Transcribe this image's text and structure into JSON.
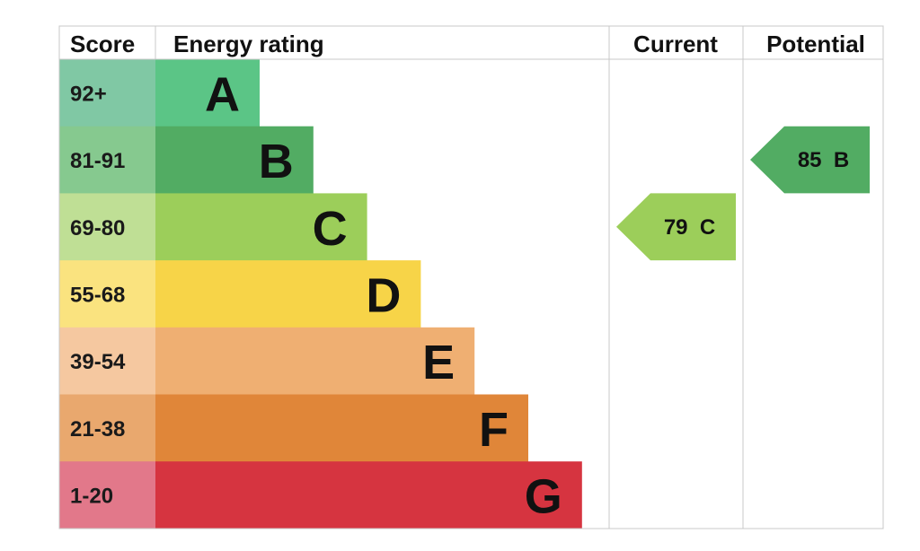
{
  "headers": {
    "score": "Score",
    "energy_rating": "Energy rating",
    "current": "Current",
    "potential": "Potential"
  },
  "chart_data": {
    "type": "bar",
    "bands": [
      {
        "letter": "A",
        "range": "92+",
        "min": 92,
        "max": 100,
        "color": "#5bc586",
        "score_color": "#80c8a4"
      },
      {
        "letter": "B",
        "range": "81-91",
        "min": 81,
        "max": 91,
        "color": "#52ac63",
        "score_color": "#86c98f"
      },
      {
        "letter": "C",
        "range": "69-80",
        "min": 69,
        "max": 80,
        "color": "#9cce5a",
        "score_color": "#bfdf95"
      },
      {
        "letter": "D",
        "range": "55-68",
        "min": 55,
        "max": 68,
        "color": "#f7d448",
        "score_color": "#fae37f"
      },
      {
        "letter": "E",
        "range": "39-54",
        "min": 39,
        "max": 54,
        "color": "#efaf72",
        "score_color": "#f5c8a0"
      },
      {
        "letter": "F",
        "range": "21-38",
        "min": 21,
        "max": 38,
        "color": "#e08639",
        "score_color": "#e9a86e"
      },
      {
        "letter": "G",
        "range": "1-20",
        "min": 1,
        "max": 20,
        "color": "#d63440",
        "score_color": "#e2788a"
      }
    ],
    "current": {
      "value": 79,
      "band": "C",
      "label": "79  C",
      "color": "#9cce5a"
    },
    "potential": {
      "value": 85,
      "band": "B",
      "label": "85  B",
      "color": "#52ac63"
    }
  }
}
